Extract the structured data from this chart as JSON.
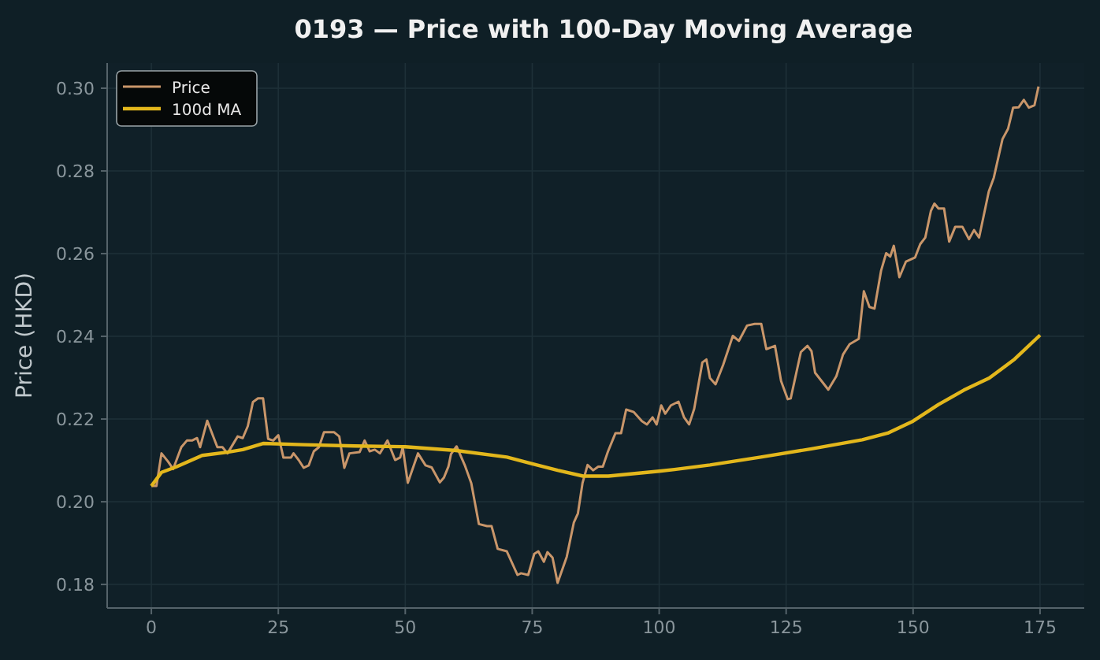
{
  "chart_data": {
    "type": "line",
    "title": "0193 — Price with 100-Day Moving Average",
    "ylabel": "Price (HKD)",
    "xlim": [
      -8.7,
      183.7
    ],
    "ylim": [
      0.1743,
      0.3061
    ],
    "xticks": [
      0,
      25,
      50,
      75,
      100,
      125,
      150,
      175
    ],
    "yticks": [
      {
        "value": 0.18,
        "label": "0.18"
      },
      {
        "value": 0.2,
        "label": "0.20"
      },
      {
        "value": 0.22,
        "label": "0.22"
      },
      {
        "value": 0.24,
        "label": "0.24"
      },
      {
        "value": 0.26,
        "label": "0.26"
      },
      {
        "value": 0.28,
        "label": "0.28"
      },
      {
        "value": 0.3,
        "label": "0.30"
      }
    ],
    "grid": true,
    "legend": "top left",
    "series": [
      {
        "name": "Price",
        "color": "#c9966a",
        "x": [
          0,
          1,
          2,
          3.3,
          4.3,
          5.9,
          7,
          8,
          9,
          9.6,
          11,
          12,
          13,
          14,
          15,
          17,
          18,
          19,
          20,
          21,
          22,
          23,
          24,
          25,
          26,
          27.5,
          28,
          29,
          30,
          31,
          32,
          33,
          34,
          36,
          37,
          38,
          39,
          41,
          42,
          43,
          44,
          45,
          46.5,
          48,
          49,
          49.5,
          50.5,
          52.5,
          54,
          55.2,
          56.8,
          57.6,
          58.5,
          59,
          60.1,
          61.7,
          63,
          64.5,
          66.1,
          67,
          68.2,
          70,
          72.1,
          72.8,
          74.2,
          75.4,
          76.2,
          77.3,
          78,
          79,
          80,
          81.8,
          83.2,
          84,
          84.9,
          85.9,
          87,
          88,
          88.9,
          89.9,
          91.4,
          92.5,
          93.5,
          95,
          96.6,
          97.6,
          98.7,
          99.5,
          100.4,
          101.2,
          102.3,
          103.8,
          104.9,
          105.9,
          106.9,
          108.5,
          109.3,
          110,
          111.1,
          112.6,
          114.5,
          115.7,
          117.3,
          118.8,
          120.1,
          121.1,
          122.8,
          124,
          125.3,
          125.9,
          127.9,
          129.2,
          130,
          130.7,
          133.3,
          134.9,
          136.2,
          137.5,
          139.3,
          140.3,
          141.4,
          142.4,
          143.7,
          144.7,
          145.5,
          146.2,
          147.3,
          148.6,
          150.4,
          151.4,
          152.4,
          153.5,
          154.2,
          155,
          156.1,
          157.1,
          158.3,
          159.7,
          161,
          162,
          163,
          164.9,
          165.9,
          167.6,
          168.7,
          169.7,
          170.8,
          171.8,
          172.8,
          173.9,
          174.7
        ],
        "values": [
          0.2038,
          0.2038,
          0.2117,
          0.2097,
          0.2079,
          0.2132,
          0.2148,
          0.2148,
          0.2154,
          0.2132,
          0.2196,
          0.2164,
          0.2132,
          0.2132,
          0.2117,
          0.2158,
          0.2154,
          0.2183,
          0.2241,
          0.225,
          0.225,
          0.2152,
          0.2148,
          0.2161,
          0.2107,
          0.2107,
          0.2117,
          0.2101,
          0.2082,
          0.2088,
          0.2122,
          0.2132,
          0.2168,
          0.2168,
          0.2158,
          0.2082,
          0.2117,
          0.212,
          0.2148,
          0.2122,
          0.2126,
          0.2117,
          0.2148,
          0.2101,
          0.2107,
          0.2132,
          0.2046,
          0.2117,
          0.2088,
          0.2083,
          0.2047,
          0.2058,
          0.2085,
          0.2115,
          0.2134,
          0.2089,
          0.2045,
          0.1946,
          0.1941,
          0.1941,
          0.1886,
          0.188,
          0.1823,
          0.1827,
          0.1823,
          0.1874,
          0.188,
          0.1855,
          0.1878,
          0.1865,
          0.1804,
          0.1867,
          0.195,
          0.1972,
          0.2045,
          0.2089,
          0.2076,
          0.2085,
          0.2085,
          0.2121,
          0.2166,
          0.2166,
          0.2223,
          0.2217,
          0.2195,
          0.2187,
          0.2204,
          0.2187,
          0.2233,
          0.2213,
          0.2233,
          0.2242,
          0.2204,
          0.2187,
          0.2225,
          0.2337,
          0.2344,
          0.2299,
          0.2284,
          0.2331,
          0.2401,
          0.2389,
          0.2426,
          0.243,
          0.243,
          0.2369,
          0.2377,
          0.2292,
          0.2248,
          0.225,
          0.2362,
          0.2377,
          0.2364,
          0.2312,
          0.2271,
          0.2304,
          0.2356,
          0.2381,
          0.2394,
          0.2509,
          0.2471,
          0.2467,
          0.2559,
          0.2601,
          0.2593,
          0.2619,
          0.2543,
          0.2581,
          0.2591,
          0.2623,
          0.2639,
          0.2703,
          0.2721,
          0.2709,
          0.2709,
          0.2629,
          0.2665,
          0.2665,
          0.2635,
          0.2657,
          0.2639,
          0.275,
          0.2784,
          0.2877,
          0.2902,
          0.2953,
          0.2954,
          0.2972,
          0.2953,
          0.2959,
          0.3004
        ]
      },
      {
        "name": "100d MA",
        "color": "#e3b71c",
        "x": [
          0,
          2,
          5,
          10,
          15,
          18,
          22,
          30,
          40,
          50,
          60,
          70,
          75,
          80,
          85,
          90,
          100,
          103,
          110,
          120,
          130,
          140,
          145,
          150,
          155,
          160,
          165,
          170,
          175
        ],
        "values": [
          0.2038,
          0.2071,
          0.2085,
          0.2112,
          0.212,
          0.2126,
          0.2141,
          0.2138,
          0.2135,
          0.2133,
          0.2124,
          0.2108,
          0.2092,
          0.2076,
          0.2062,
          0.2062,
          0.2074,
          0.2078,
          0.2089,
          0.2108,
          0.2128,
          0.215,
          0.2166,
          0.2195,
          0.2235,
          0.227,
          0.2299,
          0.2345,
          0.2403
        ]
      }
    ]
  }
}
